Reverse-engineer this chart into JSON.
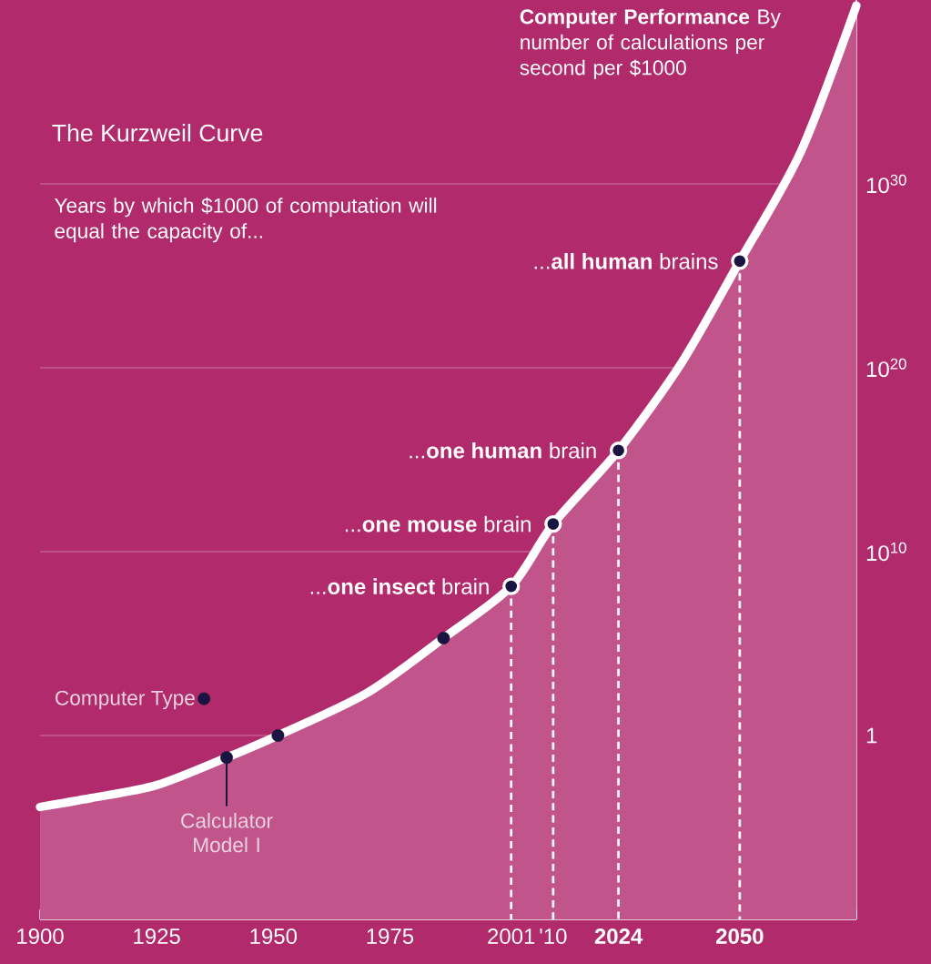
{
  "chart_data": {
    "type": "area",
    "title": "The Kurzweil Curve",
    "subtitle": "Years by which $1000 of computation will equal the capacity of...",
    "ylabel": "**Computer Performance** By number of calculations per second per $1000",
    "log": "y",
    "grid": "y",
    "legend": "left",
    "xlim": [
      1900,
      2075
    ],
    "ylim": [
      1e-10,
      1e+40
    ],
    "xticks": [
      1900,
      1925,
      1950,
      1975,
      2001,
      {
        "value": 2010,
        "label": "'10"
      },
      {
        "value": 2024,
        "label": "**2024**"
      },
      {
        "value": 2050,
        "label": "**2050**"
      },
      {
        "value": 2075,
        "label": null
      }
    ],
    "yticks": [
      1,
      {
        "value": 10000000000.0,
        "label": "10$^{10}$"
      },
      {
        "value": 1e+20,
        "label": "10$^{20}$"
      },
      {
        "value": 1e+30,
        "label": "10$^{30}$"
      }
    ],
    "series": [
      {
        "color": "#ffffff",
        "marker": "none",
        "x": [
          1900,
          1911,
          1925,
          1940,
          1951,
          1970,
          1986.5,
          2001,
          2010,
          2024,
          2037.6,
          2050,
          2063,
          2075
        ],
        "values": [
          0.00013,
          0.0004,
          0.002,
          0.063,
          1,
          200,
          200000.0,
          130000000.0,
          320000000000.0,
          3200000000000000.0,
          2e+20,
          6.3e+25,
          5e+31,
          5e+39
        ]
      },
      {
        "type": "scatter",
        "name": "Computer Type",
        "color": "#1a1440",
        "marker": "circle",
        "line_style": "solid",
        "x": [
          1940,
          1951,
          1986.5
        ],
        "values": [
          0.063,
          1,
          200000.0
        ]
      },
      {
        "type": "scatter",
        "color": "#1a1440",
        "marker": "circle",
        "line_style": "dashed",
        "x": [
          2001,
          2010,
          2024,
          2050
        ],
        "values": [
          130000000.0,
          320000000000.0,
          3200000000000000.0,
          6.3e+25
        ]
      }
    ],
    "annotations": [
      {
        "text": "Calculator Model I",
        "x": 1940,
        "y": 0.063
      },
      {
        "text": "...**one insect** brain",
        "x": 2001,
        "y": 130000000.0
      },
      {
        "text": "...**one mouse** brain",
        "x": 2010,
        "y": 320000000000.0
      },
      {
        "text": "...**one human** brain",
        "x": 2024,
        "y": 3200000000000000.0
      },
      {
        "text": "...**all human** brains",
        "x": 2050,
        "y": 6.3e+25
      }
    ]
  }
}
